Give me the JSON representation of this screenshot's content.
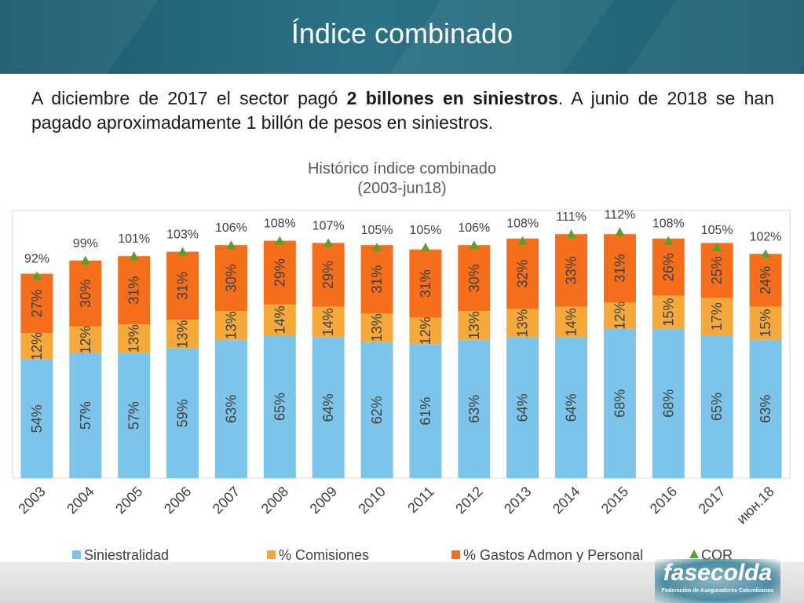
{
  "slide": {
    "title": "Índice combinado",
    "intro_part1": "A diciembre de 2017 el sector pagó ",
    "intro_bold": "2 billones en siniestros",
    "intro_part2": ". A junio de 2018 se han pagado aproximadamente 1 billón de pesos en siniestros."
  },
  "logo": {
    "name": "fasecolda",
    "tagline": "Federación de Aseguradores Colombianos"
  },
  "colors": {
    "siniestralidad": "#7cc4ea",
    "comisiones": "#f5a93a",
    "gastos": "#f46e1c",
    "cor": "#5aa02c",
    "header": "#1f5f73"
  },
  "chart_data": {
    "type": "bar",
    "stacked": true,
    "title": "Histórico índice combinado",
    "subtitle": "(2003-jun18)",
    "categories": [
      "2003",
      "2004",
      "2005",
      "2006",
      "2007",
      "2008",
      "2009",
      "2010",
      "2011",
      "2012",
      "2013",
      "2014",
      "2015",
      "2016",
      "2017",
      "июн.18"
    ],
    "series": [
      {
        "name": "Siniestralidad",
        "key": "siniestralidad",
        "values": [
          54,
          57,
          57,
          59,
          63,
          65,
          64,
          62,
          61,
          63,
          64,
          64,
          68,
          68,
          65,
          63
        ]
      },
      {
        "name": "% Comisiones",
        "key": "comisiones",
        "values": [
          12,
          12,
          13,
          13,
          13,
          14,
          14,
          13,
          12,
          13,
          13,
          14,
          12,
          15,
          17,
          15
        ]
      },
      {
        "name": "% Gastos Admon y Personal",
        "key": "gastos",
        "values": [
          27,
          30,
          31,
          31,
          30,
          29,
          29,
          31,
          31,
          30,
          32,
          33,
          31,
          26,
          25,
          24
        ]
      }
    ],
    "cor": {
      "name": "COR",
      "values": [
        92,
        99,
        101,
        103,
        106,
        108,
        107,
        105,
        105,
        106,
        108,
        111,
        112,
        108,
        105,
        102
      ]
    },
    "ylim": [
      0,
      120
    ],
    "grid": false,
    "legend_position": "bottom"
  }
}
